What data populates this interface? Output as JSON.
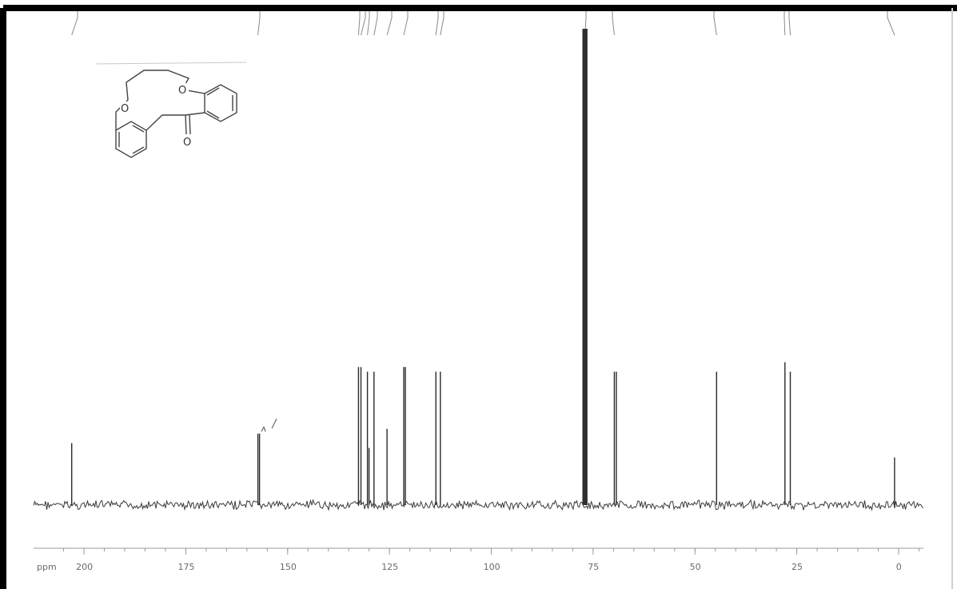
{
  "chart_data": {
    "type": "line",
    "title": "",
    "xlabel": "ppm",
    "ylabel": "",
    "xlim": [
      205,
      -5
    ],
    "ylim": [
      0,
      100
    ],
    "x_ticks": [
      200,
      175,
      150,
      125,
      100,
      75,
      50,
      25,
      0
    ],
    "x_tick_labels": [
      "200",
      "175",
      "150",
      "125",
      "100",
      "75",
      "50",
      "25",
      "0"
    ],
    "peaks": [
      {
        "ppm": 203.0,
        "height": 13
      },
      {
        "ppm": 157.3,
        "height": 15
      },
      {
        "ppm": 156.9,
        "height": 15
      },
      {
        "ppm": 132.6,
        "height": 29
      },
      {
        "ppm": 132.0,
        "height": 29
      },
      {
        "ppm": 130.4,
        "height": 28
      },
      {
        "ppm": 130.0,
        "height": 12
      },
      {
        "ppm": 128.8,
        "height": 28
      },
      {
        "ppm": 125.6,
        "height": 16
      },
      {
        "ppm": 121.5,
        "height": 29
      },
      {
        "ppm": 121.1,
        "height": 29
      },
      {
        "ppm": 113.6,
        "height": 28
      },
      {
        "ppm": 112.5,
        "height": 28
      },
      {
        "ppm": 77.4,
        "height": 100
      },
      {
        "ppm": 77.0,
        "height": 100
      },
      {
        "ppm": 76.6,
        "height": 100
      },
      {
        "ppm": 69.8,
        "height": 28
      },
      {
        "ppm": 69.3,
        "height": 28
      },
      {
        "ppm": 44.7,
        "height": 28
      },
      {
        "ppm": 27.9,
        "height": 30
      },
      {
        "ppm": 26.6,
        "height": 28
      },
      {
        "ppm": 1.0,
        "height": 10
      }
    ],
    "grid": false,
    "legend": "none"
  },
  "structure": {
    "oxygen_label": "O",
    "carbonyl_label": "O"
  }
}
